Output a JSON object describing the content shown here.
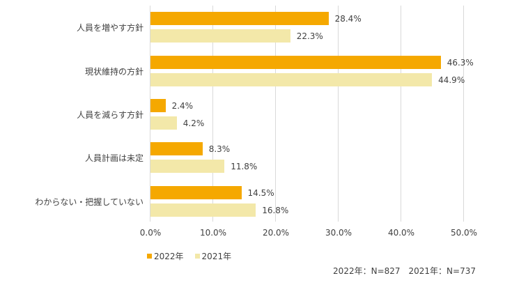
{
  "chart_data": {
    "type": "bar",
    "orientation": "horizontal",
    "title": "",
    "categories": [
      "人員を増やす方針",
      "現状維持の方針",
      "人員を減らす方針",
      "人員計画は未定",
      "わからない・把握していない"
    ],
    "series": [
      {
        "name": "2022年",
        "color": "#F5A800",
        "values": [
          28.4,
          46.3,
          2.4,
          8.3,
          14.5
        ],
        "labels": [
          "28.4%",
          "46.3%",
          "2.4%",
          "8.3%",
          "14.5%"
        ]
      },
      {
        "name": "2021年",
        "color": "#F3E8A9",
        "values": [
          22.3,
          44.9,
          4.2,
          11.8,
          16.8
        ],
        "labels": [
          "22.3%",
          "44.9%",
          "4.2%",
          "11.8%",
          "16.8%"
        ]
      }
    ],
    "xlabel": "",
    "ylabel": "",
    "xlim": [
      0,
      50
    ],
    "x_ticks": [
      "0.0%",
      "10.0%",
      "20.0%",
      "30.0%",
      "40.0%",
      "50.0%"
    ],
    "grid": true,
    "legend_position": "bottom-left",
    "note": "2022年：N=827　2021年：N=737"
  }
}
